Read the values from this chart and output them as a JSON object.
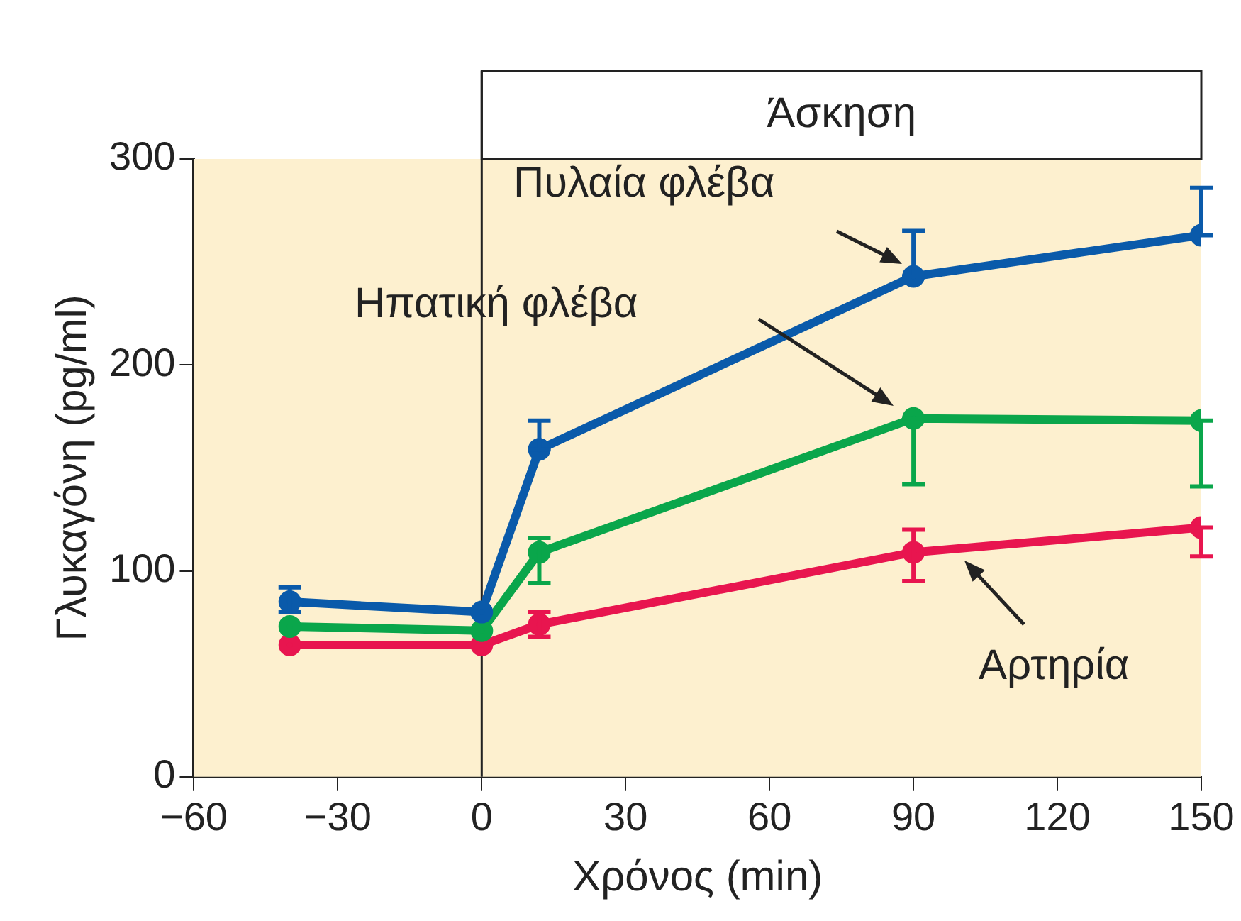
{
  "chart_data": {
    "type": "line",
    "xlabel": "Χρόνος (min)",
    "ylabel": "Γλυκαγόνη (pg/ml)",
    "xlim": [
      -60,
      150
    ],
    "xticks": [
      {
        "value": -60,
        "label": "−60"
      },
      {
        "value": -30,
        "label": "−30"
      },
      0,
      30,
      60,
      90,
      120,
      150
    ],
    "ylim": [
      0,
      300
    ],
    "yticks": [
      0,
      100,
      200,
      300
    ],
    "legend": false,
    "marker": "circle",
    "line_style": "solid",
    "x": [
      -40,
      0,
      12,
      90,
      150
    ],
    "series": [
      {
        "color": "#0a5aaa",
        "values": [
          85,
          80,
          159,
          243,
          263
        ],
        "errors": [
          [
            80,
            92
          ],
          null,
          [
            159,
            173
          ],
          [
            243,
            265
          ],
          [
            263,
            286
          ]
        ]
      },
      {
        "color": "#0aa64b",
        "values": [
          73,
          71,
          109,
          174,
          173
        ],
        "errors": [
          null,
          null,
          [
            94,
            116
          ],
          [
            142,
            174
          ],
          [
            141,
            173
          ]
        ]
      },
      {
        "color": "#e8154f",
        "values": [
          64,
          64,
          74,
          109,
          121
        ],
        "errors": [
          null,
          null,
          [
            68,
            80
          ],
          [
            95,
            120
          ],
          [
            107,
            121
          ]
        ]
      }
    ],
    "ref_lines": [
      {
        "axis": "x",
        "value": 0,
        "label": "Άσκηση",
        "color": "#222222"
      }
    ],
    "annotations": [
      "Πυλαία φλέβα",
      "Ηπατική φλέβα",
      "Αρτηρία"
    ]
  }
}
